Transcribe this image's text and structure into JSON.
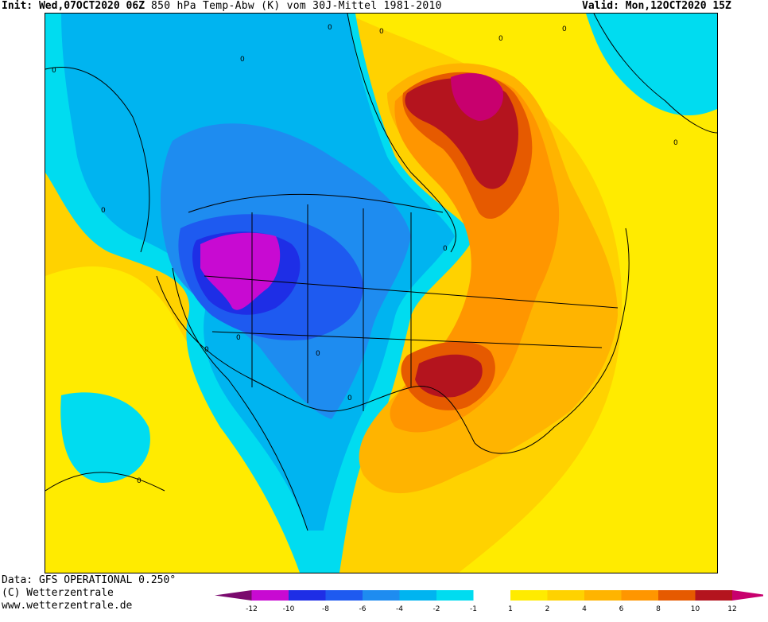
{
  "header": {
    "init_label": "Init:",
    "init_value": "Wed,07OCT2020 06Z",
    "title": "850 hPa Temp-Abw (K) vom 30J-Mittel 1981-2010",
    "valid_label": "Valid:",
    "valid_value": "Mon,12OCT2020 15Z"
  },
  "footer": {
    "data_source": "Data: GFS OPERATIONAL 0.250°",
    "copyright": "(C) Wetterzentrale",
    "url": "www.wetterzentrale.de"
  },
  "contour_labels": [
    "0",
    "0",
    "0",
    "0",
    "0",
    "0",
    "0",
    "0",
    "0",
    "0",
    "0",
    "0",
    "0",
    "0"
  ],
  "legend": {
    "ticks": [
      "-12",
      "-10",
      "-8",
      "-6",
      "-4",
      "-2",
      "-1",
      "1",
      "2",
      "4",
      "6",
      "8",
      "10",
      "12"
    ],
    "colors": [
      "#7a0a6e",
      "#c80ad2",
      "#1e2ee6",
      "#1e5af0",
      "#1e8cf0",
      "#00b4f0",
      "#00dcf0",
      "#ffffff",
      "#ffeb00",
      "#ffd200",
      "#ffb400",
      "#ff9600",
      "#e65a00",
      "#b4141e",
      "#c8006e"
    ]
  },
  "colors": {
    "purple": "#c80ad2",
    "dark_blue": "#1e2ee6",
    "blue": "#1e5af0",
    "mid_blue": "#1e8cf0",
    "light_blue": "#00b4f0",
    "cyan": "#00dcf0",
    "white": "#ffffff",
    "light_yellow": "#ffeb00",
    "yellow": "#ffd200",
    "orange_light": "#ffb400",
    "orange": "#ff9600",
    "dark_orange": "#e65a00",
    "red": "#b4141e",
    "magenta": "#c8006e"
  }
}
